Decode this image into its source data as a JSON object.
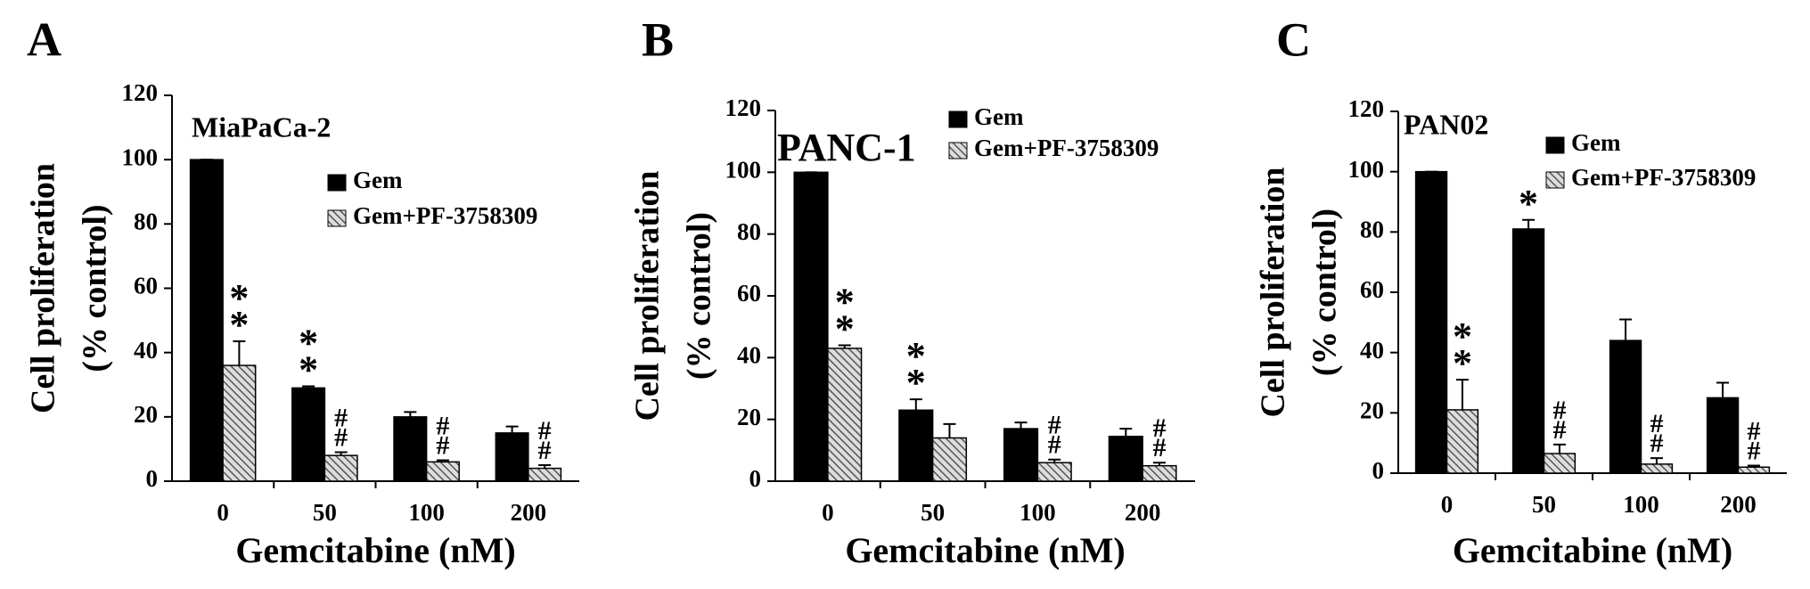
{
  "chart_data": [
    {
      "type": "bar",
      "panel": "A",
      "title": "MiaPaCa-2",
      "ylabel": [
        "Cell proliferation",
        "(% control)"
      ],
      "xlabel": "Gemcitabine (nM)",
      "categories": [
        "0",
        "50",
        "100",
        "200"
      ],
      "ylim": [
        0,
        120
      ],
      "yticks": [
        0,
        20,
        40,
        60,
        80,
        100,
        120
      ],
      "series": [
        {
          "name": "Gem",
          "color": "#000000",
          "values": [
            100,
            29,
            20,
            15
          ],
          "errors": [
            0,
            0.5,
            1.5,
            2
          ],
          "annotations": [
            null,
            "**",
            null,
            null
          ]
        },
        {
          "name": "Gem+PF-3758309",
          "color": "#555555",
          "hatch": true,
          "values": [
            36,
            8,
            6,
            4
          ],
          "errors": [
            7.5,
            1,
            0.5,
            1
          ],
          "annotations": [
            "**",
            "##",
            "##",
            "##"
          ]
        }
      ]
    },
    {
      "type": "bar",
      "panel": "B",
      "title": "PANC-1",
      "ylabel": [
        "Cell proliferation",
        "(% control)"
      ],
      "xlabel": "Gemcitabine (nM)",
      "categories": [
        "0",
        "50",
        "100",
        "200"
      ],
      "ylim": [
        0,
        120
      ],
      "yticks": [
        0,
        20,
        40,
        60,
        80,
        100,
        120
      ],
      "series": [
        {
          "name": "Gem",
          "color": "#000000",
          "values": [
            100,
            23,
            17,
            14.5
          ],
          "errors": [
            0,
            3.5,
            2,
            2.5
          ],
          "annotations": [
            null,
            "**",
            null,
            null
          ]
        },
        {
          "name": "Gem+PF-3758309",
          "color": "#555555",
          "hatch": true,
          "values": [
            43,
            14,
            6,
            5
          ],
          "errors": [
            1,
            4.5,
            1,
            1
          ],
          "annotations": [
            "**",
            null,
            "##",
            "##"
          ]
        }
      ]
    },
    {
      "type": "bar",
      "panel": "C",
      "title": "PAN02",
      "ylabel": [
        "Cell proliferation",
        "(% control)"
      ],
      "xlabel": "Gemcitabine (nM)",
      "categories": [
        "0",
        "50",
        "100",
        "200"
      ],
      "ylim": [
        0,
        120
      ],
      "yticks": [
        0,
        20,
        40,
        60,
        80,
        100,
        120
      ],
      "series": [
        {
          "name": "Gem",
          "color": "#000000",
          "values": [
            100,
            81,
            44,
            25
          ],
          "errors": [
            0,
            3,
            7,
            5
          ],
          "annotations": [
            null,
            "*",
            null,
            null
          ]
        },
        {
          "name": "Gem+PF-3758309",
          "color": "#555555",
          "hatch": true,
          "values": [
            21,
            6.5,
            3,
            2
          ],
          "errors": [
            10,
            3,
            2,
            0.5
          ],
          "annotations": [
            "**",
            "##",
            "##",
            "##"
          ]
        }
      ]
    }
  ]
}
